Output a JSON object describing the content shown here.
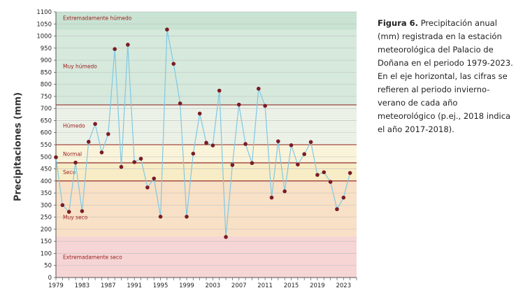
{
  "caption": {
    "figure_label": "Figura 6.",
    "text": "Precipitación anual (mm) registrada en la estación meteorológica del Palacio de Doñana en el periodo 1979-2023. En el eje horizontal, las cifras se refieren al periodo invierno-verano de cada año meteorológico (p.ej., 2018 indica el año 2017-2018)."
  },
  "chart_data": {
    "type": "line",
    "title": "",
    "xlabel": "",
    "ylabel": "Precipitaciones (mm)",
    "ylim": [
      0,
      1100
    ],
    "xlim": [
      1979,
      2025
    ],
    "y_ticks": [
      0,
      50,
      100,
      150,
      200,
      250,
      300,
      350,
      400,
      450,
      500,
      550,
      600,
      650,
      700,
      750,
      800,
      850,
      900,
      950,
      1000,
      1050,
      1100
    ],
    "x_ticks": [
      1979,
      1983,
      1987,
      1991,
      1995,
      1999,
      2003,
      2007,
      2011,
      2015,
      2019,
      2023
    ],
    "grid": true,
    "line_color": "#7fc9e4",
    "marker_color": "#7a1c24",
    "bands": [
      {
        "label": "Extremadamente seco",
        "from": 0,
        "to": 170,
        "color": "#f9d3d3"
      },
      {
        "label": "Muy seco",
        "from": 170,
        "to": 400,
        "color": "#fbe0c2"
      },
      {
        "label": "Seco",
        "from": 400,
        "to": 475,
        "color": "#fbeec2"
      },
      {
        "label": "Normal",
        "from": 475,
        "to": 550,
        "color": "#fdf6d8"
      },
      {
        "label": "Húmedo",
        "from": 550,
        "to": 715,
        "color": "#ecf3e7"
      },
      {
        "label": "Muy húmedo",
        "from": 715,
        "to": 1025,
        "color": "#d4eadb"
      },
      {
        "label": "Extremadamente húmedo",
        "from": 1025,
        "to": 1100,
        "color": "#c4e3d0"
      }
    ],
    "threshold_lines": [
      400,
      475,
      550,
      715
    ],
    "threshold_color": "#8b1a1a",
    "x": [
      1979,
      1980,
      1981,
      1982,
      1983,
      1984,
      1985,
      1986,
      1987,
      1988,
      1989,
      1990,
      1991,
      1992,
      1993,
      1994,
      1995,
      1996,
      1997,
      1998,
      1999,
      2000,
      2001,
      2002,
      2003,
      2004,
      2005,
      2006,
      2007,
      2008,
      2009,
      2010,
      2011,
      2012,
      2013,
      2014,
      2015,
      2016,
      2017,
      2018,
      2019,
      2020,
      2021,
      2022,
      2023,
      2024
    ],
    "y": [
      498,
      300,
      272,
      476,
      275,
      562,
      636,
      518,
      594,
      946,
      458,
      964,
      478,
      492,
      373,
      410,
      252,
      1027,
      885,
      721,
      252,
      513,
      679,
      558,
      547,
      774,
      168,
      466,
      716,
      553,
      474,
      782,
      711,
      331,
      564,
      357,
      548,
      468,
      511,
      561,
      425,
      436,
      396,
      283,
      331,
      433
    ]
  }
}
